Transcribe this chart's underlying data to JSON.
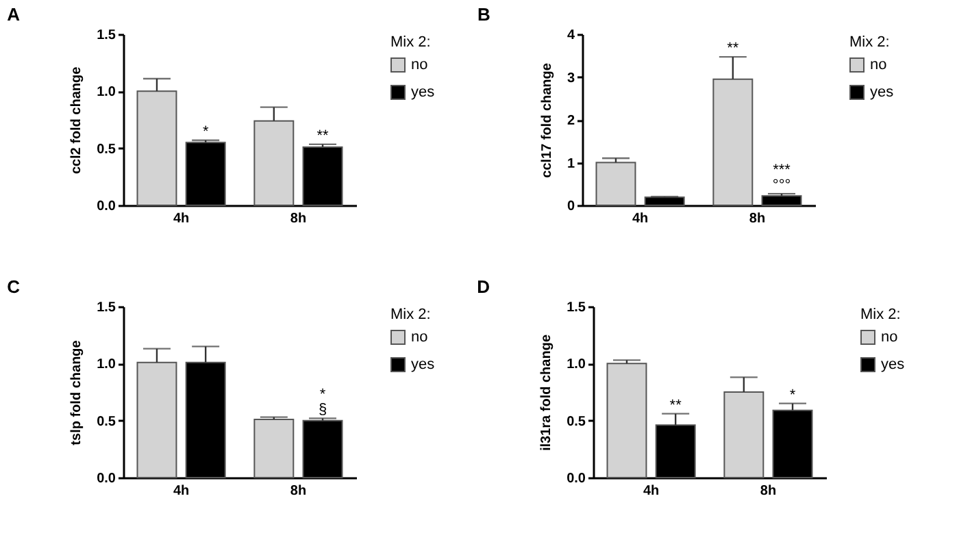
{
  "chart_data": [
    {
      "type": "bar",
      "title": "A",
      "ylabel": "ccl2 fold change",
      "legend_title": "Mix 2:",
      "legend": "right",
      "grid": false,
      "categories": [
        "4h",
        "8h"
      ],
      "series": [
        {
          "name": "no",
          "color": "#d3d3d3",
          "values": [
            1.0,
            0.74
          ],
          "errors": [
            [
              1.0,
              1.11
            ],
            [
              0.74,
              0.86
            ]
          ]
        },
        {
          "name": "yes",
          "color": "#000000",
          "values": [
            0.55,
            0.51
          ],
          "errors": [
            [
              0.55,
              0.57
            ],
            [
              0.51,
              0.535
            ]
          ]
        }
      ],
      "ylim": [
        0,
        1.5
      ],
      "yticks": [
        {
          "value": 0,
          "label": "0.0"
        },
        {
          "value": 0.5,
          "label": "0.5"
        },
        {
          "value": 1,
          "label": "1.0"
        },
        {
          "value": 1.5,
          "label": "1.5"
        }
      ],
      "annotations": [
        {
          "text": "*",
          "x": "4h",
          "y": 0.55
        },
        {
          "text": "**",
          "x": "8h",
          "y": 0.51
        }
      ]
    },
    {
      "type": "bar",
      "title": "B",
      "ylabel": "ccl17 fold change",
      "legend_title": "Mix 2:",
      "legend": "right",
      "grid": false,
      "categories": [
        "4h",
        "8h"
      ],
      "series": [
        {
          "name": "no",
          "color": "#d3d3d3",
          "values": [
            1.0,
            2.95
          ],
          "errors": [
            [
              1.0,
              1.1
            ],
            [
              2.95,
              3.47
            ]
          ]
        },
        {
          "name": "yes",
          "color": "#000000",
          "values": [
            0.19,
            0.22
          ],
          "errors": [
            [
              0.19,
              0.2
            ],
            [
              0.22,
              0.27
            ]
          ]
        }
      ],
      "ylim": [
        0,
        4
      ],
      "yticks": [
        0,
        1,
        2,
        3,
        4
      ],
      "annotations": [
        {
          "text": "**",
          "x": "8h",
          "y": 2.95
        },
        {
          "text": "°°°",
          "x": "8h",
          "y": 0.22
        },
        {
          "text": "***",
          "x": "8h",
          "y": 0.22
        }
      ]
    },
    {
      "type": "bar",
      "title": "C",
      "ylabel": "tslp fold change",
      "legend_title": "Mix 2:",
      "legend": "right",
      "grid": false,
      "categories": [
        "4h",
        "8h"
      ],
      "series": [
        {
          "name": "no",
          "color": "#d3d3d3",
          "values": [
            1.01,
            0.51
          ],
          "errors": [
            [
              1.01,
              1.13
            ],
            [
              0.51,
              0.53
            ]
          ]
        },
        {
          "name": "yes",
          "color": "#000000",
          "values": [
            1.01,
            0.5
          ],
          "errors": [
            [
              1.01,
              1.15
            ],
            [
              0.5,
              0.52
            ]
          ]
        }
      ],
      "ylim": [
        0,
        1.5
      ],
      "yticks": [
        {
          "value": 0,
          "label": "0.0"
        },
        {
          "value": 0.5,
          "label": "0.5"
        },
        {
          "value": 1,
          "label": "1.0"
        },
        {
          "value": 1.5,
          "label": "1.5"
        }
      ],
      "annotations": [
        {
          "text": "§",
          "x": "8h",
          "y": 0.5
        },
        {
          "text": "*",
          "x": "8h",
          "y": 0.5
        }
      ]
    },
    {
      "type": "bar",
      "title": "D",
      "ylabel": "il31ra fold change",
      "legend_title": "Mix 2:",
      "legend": "right",
      "grid": false,
      "categories": [
        "4h",
        "8h"
      ],
      "series": [
        {
          "name": "no",
          "color": "#d3d3d3",
          "values": [
            1.0,
            0.75
          ],
          "errors": [
            [
              1.0,
              1.03
            ],
            [
              0.75,
              0.88
            ]
          ]
        },
        {
          "name": "yes",
          "color": "#000000",
          "values": [
            0.46,
            0.59
          ],
          "errors": [
            [
              0.46,
              0.56
            ],
            [
              0.59,
              0.65
            ]
          ]
        }
      ],
      "ylim": [
        0,
        1.5
      ],
      "yticks": [
        {
          "value": 0,
          "label": "0.0"
        },
        {
          "value": 0.5,
          "label": "0.5"
        },
        {
          "value": 1,
          "label": "1.0"
        },
        {
          "value": 1.5,
          "label": "1.5"
        }
      ],
      "annotations": [
        {
          "text": "**",
          "x": "4h",
          "y": 0.46
        },
        {
          "text": "*",
          "x": "8h",
          "y": 0.59
        }
      ]
    }
  ]
}
